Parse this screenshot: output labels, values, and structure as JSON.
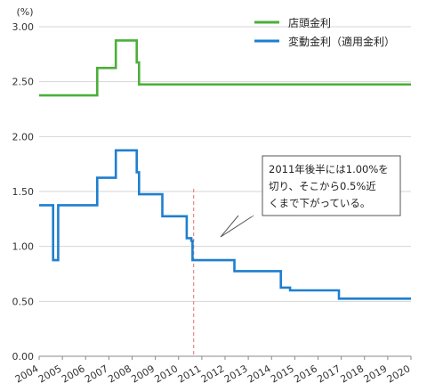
{
  "chart_data": {
    "type": "line",
    "unit_label": "(%)",
    "xlabel": "",
    "ylabel": "",
    "xlim": [
      2004,
      2020
    ],
    "ylim": [
      0,
      3
    ],
    "grid": true,
    "legend_position": "top-right",
    "x_ticks": [
      "2004",
      "2005",
      "2006",
      "2007",
      "2008",
      "2009",
      "2010",
      "2011",
      "2012",
      "2013",
      "2014",
      "2015",
      "2016",
      "2017",
      "2018",
      "2019",
      "2020"
    ],
    "y_ticks": [
      "0.00",
      "0.50",
      "1.00",
      "1.50",
      "2.00",
      "2.50",
      "3.00"
    ],
    "series": [
      {
        "name": "店頭金利",
        "color": "#4caf3a",
        "points": [
          [
            2004.0,
            2.375
          ],
          [
            2006.5,
            2.375
          ],
          [
            2006.5,
            2.625
          ],
          [
            2007.3,
            2.625
          ],
          [
            2007.3,
            2.875
          ],
          [
            2008.2,
            2.875
          ],
          [
            2008.2,
            2.675
          ],
          [
            2008.3,
            2.675
          ],
          [
            2008.3,
            2.475
          ],
          [
            2020.0,
            2.475
          ]
        ]
      },
      {
        "name": "変動金利（適用金利）",
        "color": "#1e7fd0",
        "points": [
          [
            2004.0,
            1.375
          ],
          [
            2004.6,
            1.375
          ],
          [
            2004.6,
            0.875
          ],
          [
            2004.82,
            0.875
          ],
          [
            2004.82,
            1.375
          ],
          [
            2006.5,
            1.375
          ],
          [
            2006.5,
            1.625
          ],
          [
            2007.3,
            1.625
          ],
          [
            2007.3,
            1.875
          ],
          [
            2008.2,
            1.875
          ],
          [
            2008.2,
            1.675
          ],
          [
            2008.3,
            1.675
          ],
          [
            2008.3,
            1.475
          ],
          [
            2009.3,
            1.475
          ],
          [
            2009.3,
            1.275
          ],
          [
            2010.35,
            1.275
          ],
          [
            2010.35,
            1.075
          ],
          [
            2010.55,
            1.075
          ],
          [
            2010.55,
            1.05
          ],
          [
            2010.6,
            1.05
          ],
          [
            2010.6,
            0.875
          ],
          [
            2012.4,
            0.875
          ],
          [
            2012.4,
            0.775
          ],
          [
            2014.4,
            0.775
          ],
          [
            2014.4,
            0.625
          ],
          [
            2014.8,
            0.625
          ],
          [
            2014.8,
            0.6
          ],
          [
            2016.9,
            0.6
          ],
          [
            2016.9,
            0.525
          ],
          [
            2020.0,
            0.525
          ]
        ]
      }
    ],
    "reference_line": {
      "x": 2010.65,
      "style": "dashed",
      "color": "#e07070"
    },
    "annotation": {
      "lines": [
        "2011年後半には1.00%を",
        "切り、そこから0.5%近",
        "くまで下がっている。"
      ],
      "points_to": {
        "x": 2010.65,
        "y": 0.88
      }
    }
  }
}
